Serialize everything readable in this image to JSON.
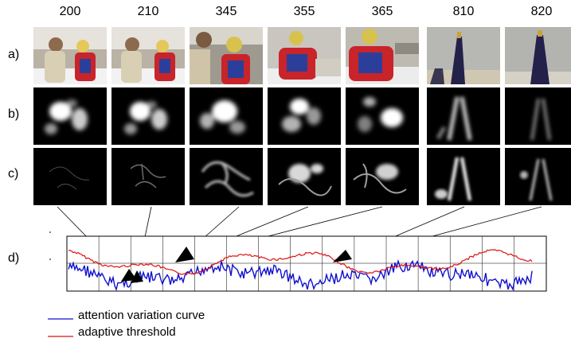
{
  "frames": [
    "200",
    "210",
    "345",
    "355",
    "365",
    "810",
    "820"
  ],
  "rows": {
    "a": "a)",
    "b": "b)",
    "c": "c)",
    "d": "d)"
  },
  "legend": {
    "attention": "attention variation curve",
    "threshold": "adaptive threshold"
  },
  "colors": {
    "attention_curve": "#1010d0",
    "adaptive_threshold": "#e01010"
  }
}
